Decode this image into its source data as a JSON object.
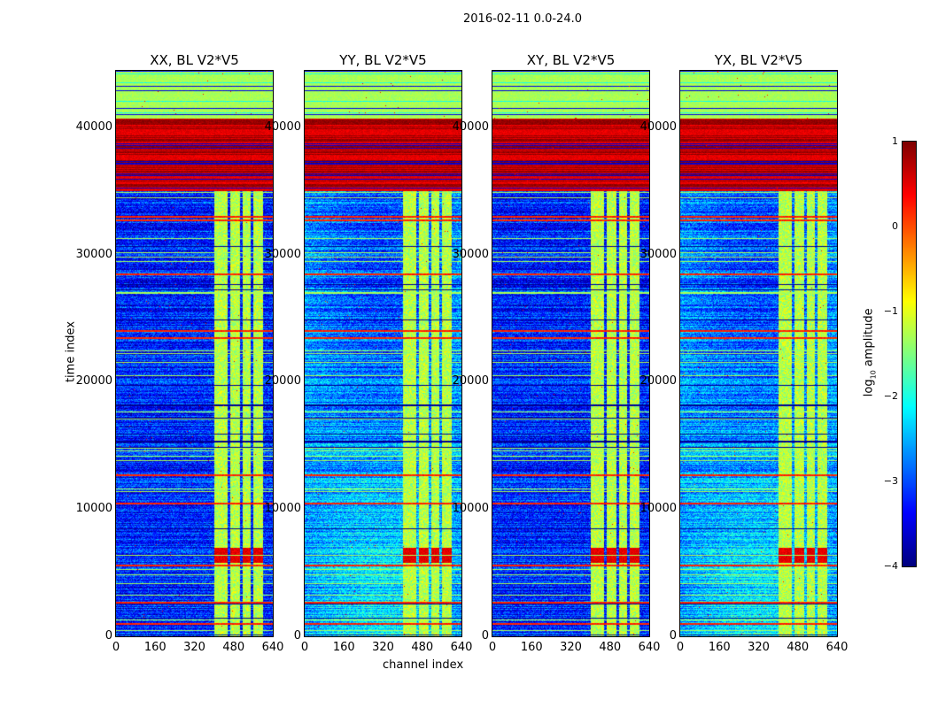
{
  "chart_data": {
    "type": "heatmap",
    "title": "2016-02-11 0.0-24.0",
    "xlabel": "channel index",
    "ylabel": "time index",
    "xlim": [
      0,
      640
    ],
    "ylim": [
      0,
      44450
    ],
    "xticks": [
      "0",
      "160",
      "320",
      "480",
      "640"
    ],
    "xtick_values": [
      0,
      160,
      320,
      480,
      640
    ],
    "yticks": [
      "0",
      "10000",
      "20000",
      "30000",
      "40000"
    ],
    "ytick_values": [
      0,
      10000,
      20000,
      30000,
      40000
    ],
    "panels": [
      {
        "title": "XX, BL V2*V5",
        "background": -3.2
      },
      {
        "title": "YY, BL V2*V5",
        "background": -2.6
      },
      {
        "title": "XY, BL V2*V5",
        "background": -3.2
      },
      {
        "title": "YX, BL V2*V5",
        "background": -2.6
      }
    ],
    "features": {
      "high_band_time": [
        35000,
        40700
      ],
      "top_band_value": -1.3,
      "flagged_channels": [
        400,
        600
      ],
      "flagged_gaps": [
        [
          455,
          465
        ],
        [
          505,
          515
        ],
        [
          548,
          558
        ]
      ],
      "rfi_burst_time": [
        5800,
        7000
      ],
      "red_lines_time": [
        33000,
        32700,
        28500,
        24000,
        23500,
        12700,
        10500,
        5600,
        2700,
        1000
      ]
    },
    "colorbar": {
      "label": "log10 amplitude",
      "label_main": "log",
      "label_sub": "10",
      "label_rest": " amplitude",
      "range": [
        -4,
        1
      ],
      "ticks": [
        "1",
        "0",
        "−1",
        "−2",
        "−3",
        "−4"
      ],
      "tick_values": [
        1,
        0,
        -1,
        -2,
        -3,
        -4
      ],
      "colormap": "jet"
    }
  }
}
